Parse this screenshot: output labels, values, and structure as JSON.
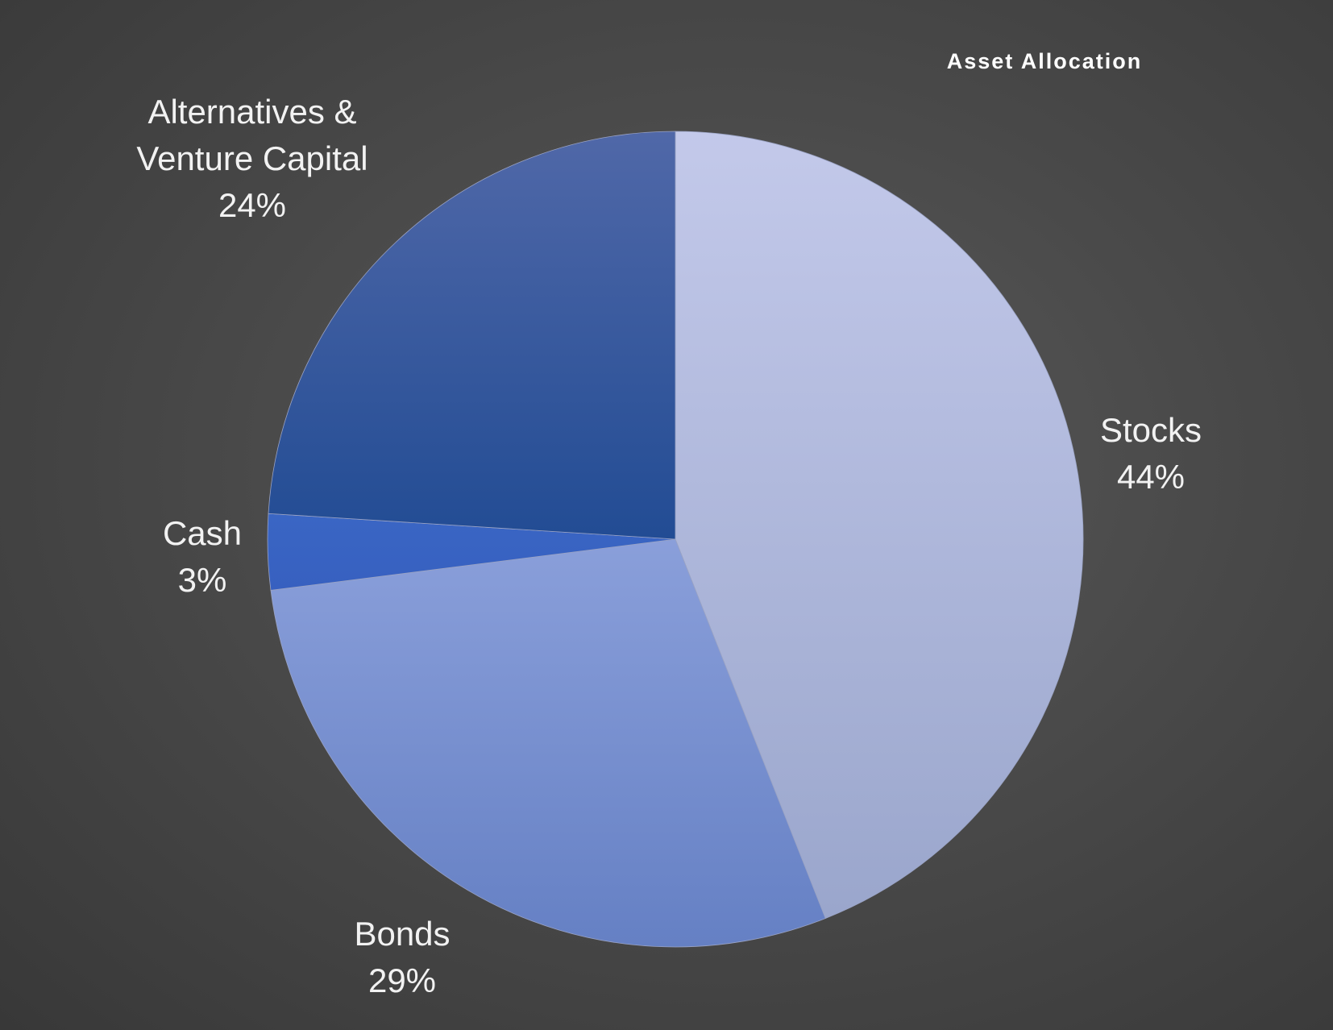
{
  "chart_data": {
    "type": "pie",
    "title": "Asset Allocation",
    "start_angle_deg": 0,
    "direction": "clockwise",
    "slices": [
      {
        "label": "Stocks",
        "label_lines": [
          "Stocks"
        ],
        "value": 44,
        "pct_label": "44%",
        "color_top": "#c3c9ea",
        "color_bottom": "#9aa6cc"
      },
      {
        "label": "Bonds",
        "label_lines": [
          "Bonds"
        ],
        "value": 29,
        "pct_label": "29%",
        "color_top": "#8a9fda",
        "color_bottom": "#6580c4"
      },
      {
        "label": "Cash",
        "label_lines": [
          "Cash"
        ],
        "value": 3,
        "pct_label": "3%",
        "color_top": "#3a66c4",
        "color_bottom": "#3760c0"
      },
      {
        "label": "Alternatives & Venture Capital",
        "label_lines": [
          "Alternatives &",
          "Venture Capital"
        ],
        "value": 24,
        "pct_label": "24%",
        "color_top": "#5068a8",
        "color_bottom": "#224c94"
      }
    ],
    "background_color": "#474747",
    "text_color": "#f2f2f2"
  }
}
